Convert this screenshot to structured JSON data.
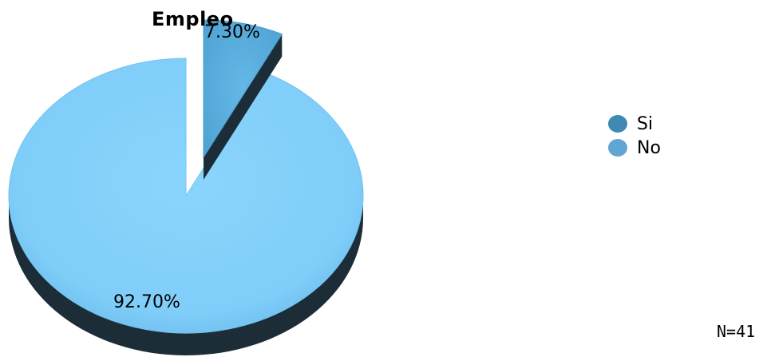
{
  "chart_data": {
    "type": "pie",
    "title": "Empleo",
    "categories": [
      "Si",
      "No"
    ],
    "values": [
      7.3,
      92.7
    ],
    "labels": [
      "7.30%",
      "92.70%"
    ],
    "colors": [
      "#5aaedd",
      "#7fcdf9"
    ],
    "legend_colors": [
      "#3f89b4",
      "#61a5d4"
    ],
    "legend_position": "right",
    "exploded_slice": "Si",
    "style": "3d"
  },
  "note": "N=41"
}
